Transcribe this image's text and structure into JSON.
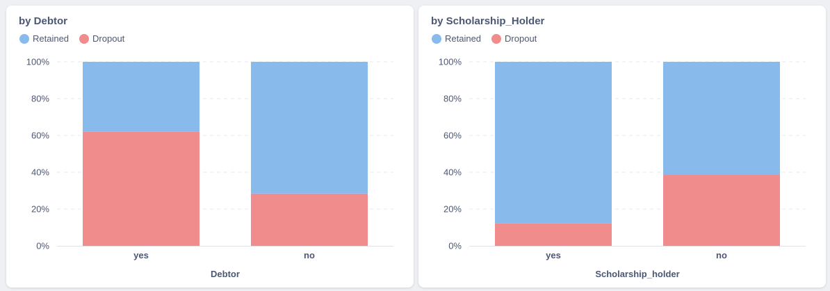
{
  "colors": {
    "retained": "#88bbec",
    "dropout": "#f08c8c",
    "grid": "#e6e8ec",
    "axis": "#e1e3e8"
  },
  "chart_data": [
    {
      "type": "bar",
      "stacked": true,
      "normalized": true,
      "title": "by Debtor",
      "xlabel": "Debtor",
      "ylabel": "",
      "ylim": [
        0,
        100
      ],
      "yticks": [
        "0%",
        "20%",
        "40%",
        "60%",
        "80%",
        "100%"
      ],
      "categories": [
        "yes",
        "no"
      ],
      "legend": "top-left",
      "grid": true,
      "series": [
        {
          "name": "Dropout",
          "values": [
            62,
            28.4
          ]
        },
        {
          "name": "Retained",
          "values": [
            38,
            71.6
          ]
        }
      ]
    },
    {
      "type": "bar",
      "stacked": true,
      "normalized": true,
      "title": "by Scholarship_Holder",
      "xlabel": "Scholarship_holder",
      "ylabel": "",
      "ylim": [
        0,
        100
      ],
      "yticks": [
        "0%",
        "20%",
        "40%",
        "60%",
        "80%",
        "100%"
      ],
      "categories": [
        "yes",
        "no"
      ],
      "legend": "top-left",
      "grid": true,
      "series": [
        {
          "name": "Dropout",
          "values": [
            12.2,
            38.7
          ]
        },
        {
          "name": "Retained",
          "values": [
            87.8,
            61.3
          ]
        }
      ]
    }
  ],
  "legend_items": [
    {
      "label": "Retained",
      "color_key": "retained"
    },
    {
      "label": "Dropout",
      "color_key": "dropout"
    }
  ]
}
